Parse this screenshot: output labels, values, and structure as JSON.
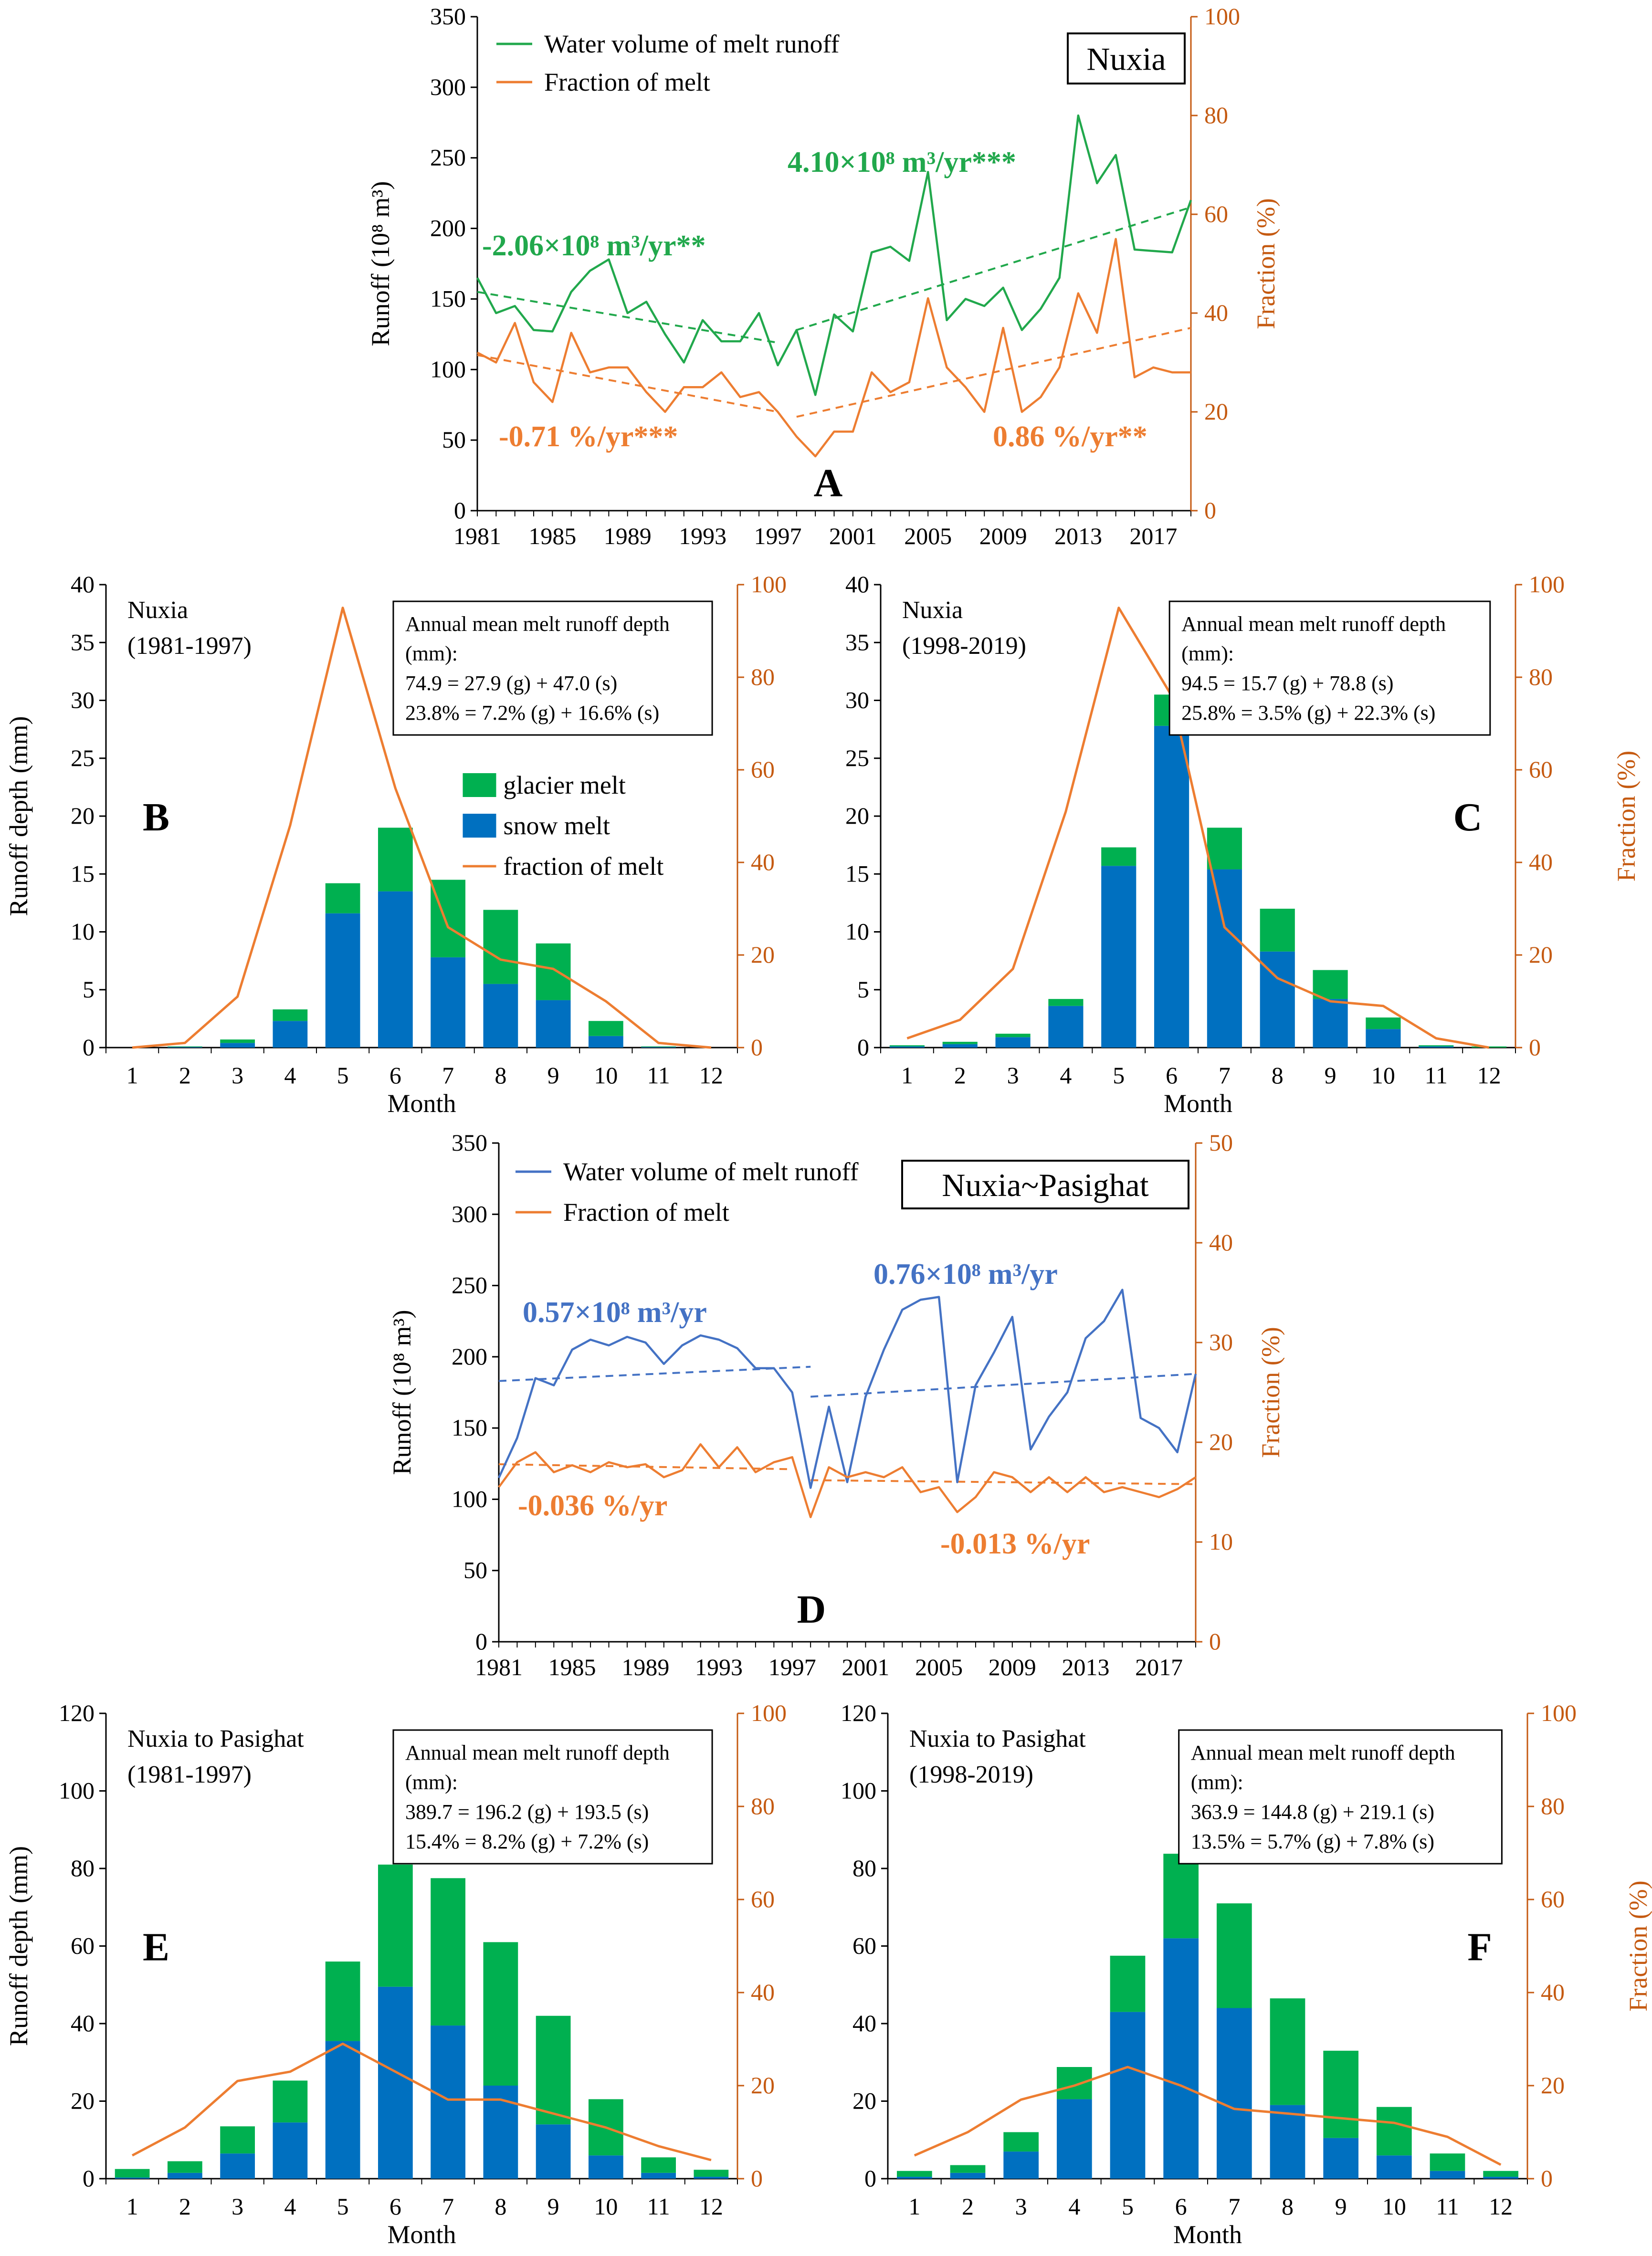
{
  "colors": {
    "green": "#00b050",
    "blue": "#0070c0",
    "orange": "#ed7d31",
    "green_line": "#21a84c",
    "blue_line": "#4472c4",
    "axis": "#000000",
    "orange_axis": "#c55a11"
  },
  "chart_data": [
    {
      "id": "A",
      "type": "line",
      "panel_letter": "A",
      "station_label": "Nuxia",
      "ylabel": "Runoff (10⁸ m³)",
      "y2label": "Fraction (%)",
      "ylim": [
        0,
        350
      ],
      "y2lim": [
        0,
        100
      ],
      "yticks": [
        "0",
        "50",
        "100",
        "150",
        "200",
        "250",
        "300",
        "350"
      ],
      "y2ticks": [
        "0",
        "20",
        "40",
        "60",
        "80",
        "100"
      ],
      "xticks": [
        "1981",
        "1985",
        "1989",
        "1993",
        "1997",
        "2001",
        "2005",
        "2009",
        "2013",
        "2017"
      ],
      "x": [
        1981,
        1982,
        1983,
        1984,
        1985,
        1986,
        1987,
        1988,
        1989,
        1990,
        1991,
        1992,
        1993,
        1994,
        1995,
        1996,
        1997,
        1998,
        1999,
        2000,
        2001,
        2002,
        2003,
        2004,
        2005,
        2006,
        2007,
        2008,
        2009,
        2010,
        2011,
        2012,
        2013,
        2014,
        2015,
        2016,
        2017,
        2018,
        2019
      ],
      "legend": [
        "Water volume of melt runoff",
        "Fraction of melt"
      ],
      "series": [
        {
          "name": "Water volume of melt runoff",
          "axis": "left",
          "color": "#21a84c",
          "values": [
            165,
            140,
            145,
            128,
            127,
            155,
            170,
            178,
            140,
            148,
            125,
            105,
            135,
            120,
            120,
            140,
            103,
            128,
            82,
            139,
            127,
            183,
            187,
            177,
            240,
            135,
            150,
            145,
            158,
            128,
            143,
            165,
            280,
            232,
            252,
            185,
            184,
            183,
            220
          ]
        },
        {
          "name": "Fraction of melt",
          "axis": "right",
          "color": "#ed7d31",
          "values": [
            32,
            30,
            38,
            26,
            22,
            36,
            28,
            29,
            29,
            24,
            20,
            25,
            25,
            28,
            23,
            24,
            20,
            15,
            11,
            16,
            16,
            28,
            24,
            26,
            43,
            29,
            25,
            20,
            37,
            20,
            23,
            29,
            44,
            36,
            55,
            27,
            29,
            28,
            28
          ]
        }
      ],
      "trends": [
        {
          "axis": "left",
          "color": "#21a84c",
          "x": [
            1981,
            1997
          ],
          "y": [
            155,
            119
          ]
        },
        {
          "axis": "left",
          "color": "#21a84c",
          "x": [
            1998,
            2019
          ],
          "y": [
            128,
            215
          ]
        },
        {
          "axis": "right",
          "color": "#ed7d31",
          "x": [
            1981,
            1997
          ],
          "y": [
            31.5,
            20
          ]
        },
        {
          "axis": "right",
          "color": "#ed7d31",
          "x": [
            1998,
            2019
          ],
          "y": [
            19,
            37
          ]
        }
      ],
      "annotations": [
        {
          "text": "-2.06×10⁸ m³/yr**",
          "color": "#21a84c",
          "size": 52
        },
        {
          "text": "4.10×10⁸ m³/yr***",
          "color": "#21a84c",
          "size": 52
        },
        {
          "text": "-0.71 %/yr***",
          "color": "#ed7d31",
          "size": 52
        },
        {
          "text": "0.86 %/yr**",
          "color": "#ed7d31",
          "size": 52
        }
      ]
    },
    {
      "id": "B",
      "type": "bar",
      "panel_letter": "B",
      "station_label": "Nuxia",
      "period": "(1981-1997)",
      "xlabel": "Month",
      "ylabel": "Runoff depth (mm)",
      "y2label": "",
      "ylim": [
        0,
        40
      ],
      "y2lim": [
        0,
        100
      ],
      "yticks": [
        "0",
        "5",
        "10",
        "15",
        "20",
        "25",
        "30",
        "35",
        "40"
      ],
      "y2ticks": [
        "0",
        "20",
        "40",
        "60",
        "80",
        "100"
      ],
      "categories": [
        "1",
        "2",
        "3",
        "4",
        "5",
        "6",
        "7",
        "8",
        "9",
        "10",
        "11",
        "12"
      ],
      "legend": [
        "glacier melt",
        "snow melt",
        "fraction of melt"
      ],
      "series": [
        {
          "name": "snow melt",
          "stack": "bottom",
          "values": [
            0,
            0.05,
            0.4,
            2.3,
            11.6,
            13.5,
            7.8,
            5.5,
            4.1,
            1.0,
            0.05,
            0
          ]
        },
        {
          "name": "glacier melt",
          "stack": "top",
          "values": [
            0,
            0.05,
            0.3,
            1.0,
            2.6,
            5.5,
            6.7,
            6.4,
            4.9,
            1.3,
            0.05,
            0
          ]
        },
        {
          "name": "fraction of melt",
          "axis": "right",
          "values": [
            0,
            1,
            11,
            48,
            95,
            56,
            26,
            19,
            17,
            10,
            1,
            0
          ]
        }
      ],
      "box_lines": [
        "Annual mean melt runoff depth",
        "(mm):",
        "74.9 = 27.9 (g) + 47.0 (s)",
        "23.8% = 7.2% (g) + 16.6% (s)"
      ]
    },
    {
      "id": "C",
      "type": "bar",
      "panel_letter": "C",
      "station_label": "Nuxia",
      "period": "(1998-2019)",
      "xlabel": "Month",
      "ylabel": "",
      "y2label": "Fraction (%)",
      "ylim": [
        0,
        40
      ],
      "y2lim": [
        0,
        100
      ],
      "yticks": [
        "0",
        "5",
        "10",
        "15",
        "20",
        "25",
        "30",
        "35",
        "40"
      ],
      "y2ticks": [
        "0",
        "20",
        "40",
        "60",
        "80",
        "100"
      ],
      "categories": [
        "1",
        "2",
        "3",
        "4",
        "5",
        "6",
        "7",
        "8",
        "9",
        "10",
        "11",
        "12"
      ],
      "series": [
        {
          "name": "snow melt",
          "stack": "bottom",
          "values": [
            0.1,
            0.3,
            0.9,
            3.6,
            15.7,
            27.8,
            15.4,
            8.3,
            4.2,
            1.6,
            0.1,
            0
          ]
        },
        {
          "name": "glacier melt",
          "stack": "top",
          "values": [
            0.1,
            0.2,
            0.3,
            0.6,
            1.6,
            2.7,
            3.6,
            3.7,
            2.5,
            1.0,
            0.1,
            0.1
          ]
        },
        {
          "name": "fraction of melt",
          "axis": "right",
          "values": [
            2,
            6,
            17,
            51,
            95,
            76,
            26,
            15,
            10,
            9,
            2,
            0
          ]
        }
      ],
      "box_lines": [
        "Annual mean melt runoff depth",
        "(mm):",
        "94.5 = 15.7 (g) + 78.8 (s)",
        "25.8% = 3.5% (g) + 22.3% (s)"
      ]
    },
    {
      "id": "D",
      "type": "line",
      "panel_letter": "D",
      "station_label": "Nuxia~Pasighat",
      "ylabel": "Runoff (10⁸ m³)",
      "y2label": "Fraction (%)",
      "ylim": [
        0,
        350
      ],
      "y2lim": [
        0,
        50
      ],
      "yticks": [
        "0",
        "50",
        "100",
        "150",
        "200",
        "250",
        "300",
        "350"
      ],
      "y2ticks": [
        "0",
        "10",
        "20",
        "30",
        "40",
        "50"
      ],
      "xticks": [
        "1981",
        "1985",
        "1989",
        "1993",
        "1997",
        "2001",
        "2005",
        "2009",
        "2013",
        "2017"
      ],
      "x": [
        1981,
        1982,
        1983,
        1984,
        1985,
        1986,
        1987,
        1988,
        1989,
        1990,
        1991,
        1992,
        1993,
        1994,
        1995,
        1996,
        1997,
        1998,
        1999,
        2000,
        2001,
        2002,
        2003,
        2004,
        2005,
        2006,
        2007,
        2008,
        2009,
        2010,
        2011,
        2012,
        2013,
        2014,
        2015,
        2016,
        2017,
        2018,
        2019
      ],
      "legend": [
        "Water volume of melt runoff",
        "Fraction of melt"
      ],
      "series": [
        {
          "name": "Water volume of melt runoff",
          "axis": "left",
          "color": "#4472c4",
          "values": [
            115,
            143,
            185,
            180,
            205,
            212,
            208,
            214,
            210,
            195,
            208,
            215,
            212,
            206,
            192,
            192,
            175,
            108,
            165,
            112,
            172,
            205,
            233,
            240,
            242,
            112,
            180,
            203,
            228,
            135,
            158,
            175,
            213,
            225,
            247,
            157,
            150,
            133,
            188
          ]
        },
        {
          "name": "Fraction of melt",
          "axis": "right",
          "color": "#ed7d31",
          "values": [
            15.5,
            18,
            19,
            17,
            17.7,
            17,
            18,
            17.5,
            17.8,
            16.5,
            17.2,
            19.8,
            17.5,
            19.5,
            17,
            18,
            18.5,
            12.5,
            17.5,
            16.5,
            17,
            16.5,
            17.5,
            15,
            15.5,
            13,
            14.5,
            17,
            16.5,
            15,
            16.5,
            15,
            16.5,
            15,
            15.5,
            15,
            14.5,
            15.3,
            16.5
          ]
        }
      ],
      "trends": [
        {
          "axis": "left",
          "color": "#4472c4",
          "x": [
            1981,
            1998
          ],
          "y": [
            183,
            193
          ]
        },
        {
          "axis": "left",
          "color": "#4472c4",
          "x": [
            1998,
            2019
          ],
          "y": [
            172,
            188
          ]
        },
        {
          "axis": "right",
          "color": "#ed7d31",
          "x": [
            1981,
            1997
          ],
          "y": [
            17.8,
            17.3
          ]
        },
        {
          "axis": "right",
          "color": "#ed7d31",
          "x": [
            1998,
            2019
          ],
          "y": [
            16.2,
            15.8
          ]
        }
      ],
      "annotations": [
        {
          "text": "0.57×10⁸ m³/yr",
          "color": "#4472c4",
          "size": 52
        },
        {
          "text": "0.76×10⁸ m³/yr",
          "color": "#4472c4",
          "size": 52
        },
        {
          "text": "-0.036 %/yr",
          "color": "#ed7d31",
          "size": 52
        },
        {
          "text": "-0.013 %/yr",
          "color": "#ed7d31",
          "size": 52
        }
      ]
    },
    {
      "id": "E",
      "type": "bar",
      "panel_letter": "E",
      "station_label": "Nuxia to Pasighat",
      "period": "(1981-1997)",
      "xlabel": "Month",
      "ylabel": "Runoff depth (mm)",
      "y2label": "",
      "ylim": [
        0,
        120
      ],
      "y2lim": [
        0,
        100
      ],
      "yticks": [
        "0",
        "20",
        "40",
        "60",
        "80",
        "100",
        "120"
      ],
      "y2ticks": [
        "0",
        "20",
        "40",
        "60",
        "80",
        "100"
      ],
      "categories": [
        "1",
        "2",
        "3",
        "4",
        "5",
        "6",
        "7",
        "8",
        "9",
        "10",
        "11",
        "12"
      ],
      "series": [
        {
          "name": "snow melt",
          "stack": "bottom",
          "values": [
            0.3,
            1.5,
            6.5,
            14.5,
            35.5,
            49.5,
            39.5,
            24,
            14,
            6,
            1.5,
            0.5
          ]
        },
        {
          "name": "glacier melt",
          "stack": "top",
          "values": [
            2.2,
            3,
            7,
            10.8,
            20.5,
            31.5,
            38,
            37,
            28,
            14.5,
            4,
            1.8
          ]
        },
        {
          "name": "fraction of melt",
          "axis": "right",
          "values": [
            5,
            11,
            21,
            23,
            29,
            23,
            17,
            17,
            14,
            11,
            7,
            4
          ]
        }
      ],
      "box_lines": [
        "Annual mean melt runoff depth",
        "(mm):",
        "389.7 = 196.2 (g) + 193.5 (s)",
        "15.4% = 8.2% (g) + 7.2% (s)"
      ]
    },
    {
      "id": "F",
      "type": "bar",
      "panel_letter": "F",
      "station_label": "Nuxia to Pasighat",
      "period": "(1998-2019)",
      "xlabel": "Month",
      "ylabel": "",
      "y2label": "Fraction (%)",
      "ylim": [
        0,
        120
      ],
      "y2lim": [
        0,
        100
      ],
      "yticks": [
        "0",
        "20",
        "40",
        "60",
        "80",
        "100",
        "120"
      ],
      "y2ticks": [
        "0",
        "20",
        "40",
        "60",
        "80",
        "100"
      ],
      "categories": [
        "1",
        "2",
        "3",
        "4",
        "5",
        "6",
        "7",
        "8",
        "9",
        "10",
        "11",
        "12"
      ],
      "series": [
        {
          "name": "snow melt",
          "stack": "bottom",
          "values": [
            0.5,
            1.5,
            7,
            20.5,
            43,
            62,
            44,
            19,
            10.5,
            6,
            2,
            0.5
          ]
        },
        {
          "name": "glacier melt",
          "stack": "top",
          "values": [
            1.5,
            2,
            5,
            8.3,
            14.5,
            21.8,
            27,
            27.5,
            22.5,
            12.5,
            4.5,
            1.5
          ]
        },
        {
          "name": "fraction of melt",
          "axis": "right",
          "values": [
            5,
            10,
            17,
            20,
            24,
            20,
            15,
            14,
            13,
            12,
            9,
            3
          ]
        }
      ],
      "box_lines": [
        "Annual mean melt runoff depth",
        "(mm):",
        "363.9 = 144.8 (g) + 219.1 (s)",
        "13.5% = 5.7% (g) + 7.8% (s)"
      ]
    }
  ]
}
